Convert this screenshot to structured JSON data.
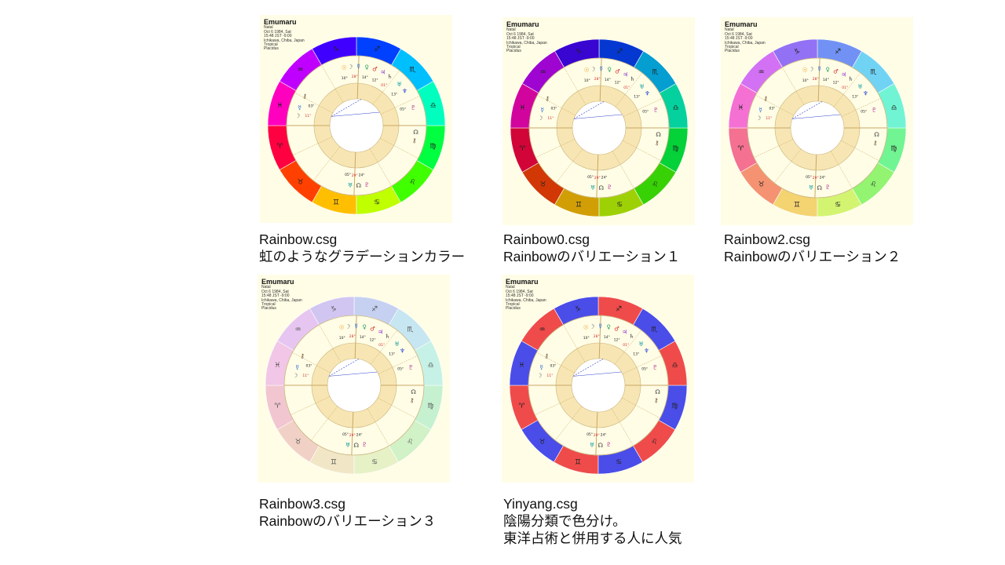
{
  "charts": [
    {
      "id": "rainbow",
      "file": "Rainbow.csg",
      "description_lines": [
        "虹のようなグラデーションカラー"
      ],
      "style": "rainbow",
      "saturation": 1.0,
      "lightness": 0.5
    },
    {
      "id": "rainbow0",
      "file": "Rainbow0.csg",
      "description_lines": [
        "Rainbowのバリエーション１"
      ],
      "style": "rainbow",
      "saturation": 0.95,
      "lightness": 0.42
    },
    {
      "id": "rainbow2",
      "file": "Rainbow2.csg",
      "description_lines": [
        "Rainbowのバリエーション２"
      ],
      "style": "rainbow",
      "saturation": 0.85,
      "lightness": 0.7
    },
    {
      "id": "rainbow3",
      "file": "Rainbow3.csg",
      "description_lines": [
        "Rainbowのバリエーション３"
      ],
      "style": "rainbow",
      "saturation": 0.6,
      "lightness": 0.86
    },
    {
      "id": "yinyang",
      "file": "Yinyang.csg",
      "description_lines": [
        "陰陽分類で色分け。",
        "東洋占術と併用する人に人気"
      ],
      "style": "yinyang",
      "yin_color": "#4a4de8",
      "yang_color": "#ef4b4b"
    }
  ],
  "chart_header": {
    "name": "Emumaru",
    "lines": [
      "Natal",
      "Oct 6 1984, Sat",
      "15:48 JST -9:00",
      "Ichikawa, Chiba, Japan",
      "Tropical",
      "Placidus"
    ]
  },
  "zodiac_glyphs": [
    "♈",
    "♉",
    "♊",
    "♋",
    "♌",
    "♍",
    "♎",
    "♏",
    "♐",
    "♑",
    "♒",
    "♓"
  ],
  "planet_glyphs": [
    "☉",
    "☽",
    "☿",
    "♀",
    "♂",
    "♃",
    "♄",
    "♅",
    "♆",
    "♇",
    "☊",
    "⚷"
  ],
  "degree_labels": [
    "10°",
    "28°",
    "14°",
    "12°",
    "01°",
    "13°",
    "05°",
    "11°",
    "03°",
    "24°",
    "29°",
    "05°"
  ],
  "colors": {
    "card_background": "#fffde6",
    "house_ring": "#f7e6b3",
    "line_blue": "#3344cc",
    "caption_text": "#111111"
  }
}
